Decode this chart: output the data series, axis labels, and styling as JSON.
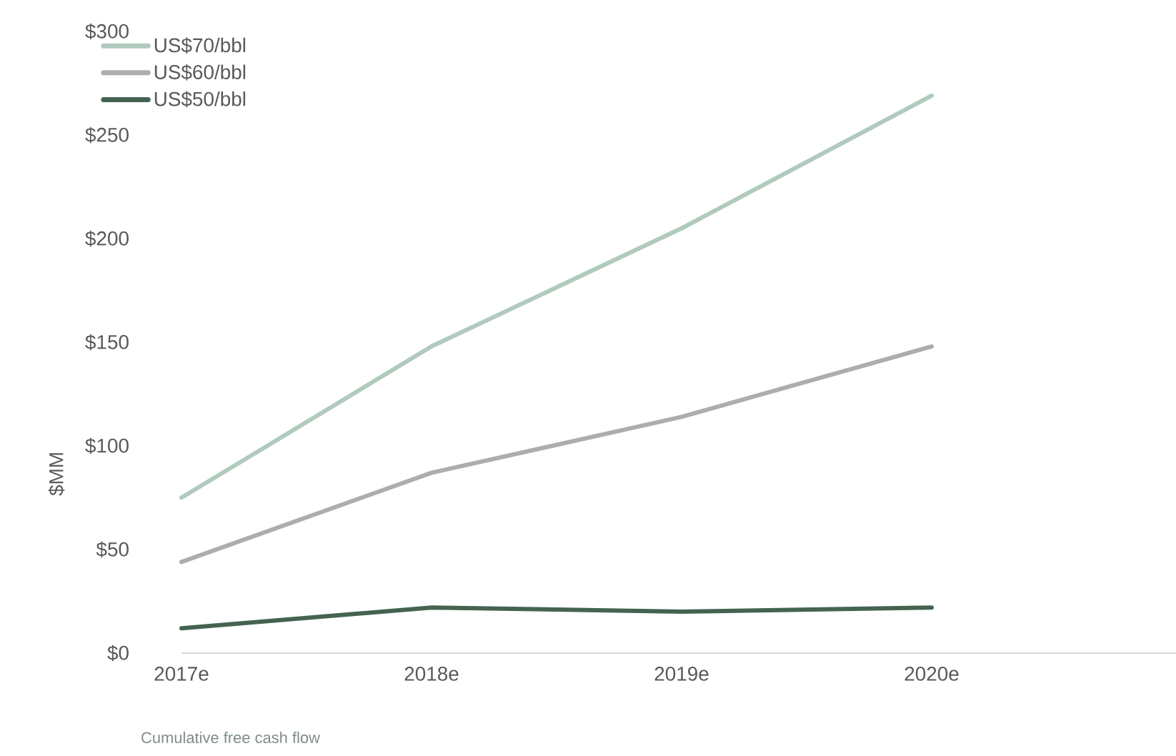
{
  "chart_data": {
    "type": "line",
    "categories": [
      "2017e",
      "2018e",
      "2019e",
      "2020e"
    ],
    "series": [
      {
        "name": "US$70/bbl",
        "color": "#b0cbbd",
        "values": [
          75,
          148,
          205,
          269
        ]
      },
      {
        "name": "US$60/bbl",
        "color": "#adadad",
        "values": [
          44,
          87,
          114,
          148
        ]
      },
      {
        "name": "US$50/bbl",
        "color": "#446351",
        "values": [
          12,
          22,
          20,
          22
        ]
      }
    ],
    "ylabel": "$MM",
    "ylim": [
      0,
      300
    ],
    "yticks": [
      {
        "value": 0,
        "label": "$0"
      },
      {
        "value": 50,
        "label": "$50"
      },
      {
        "value": 100,
        "label": "$100"
      },
      {
        "value": 150,
        "label": "$150"
      },
      {
        "value": 200,
        "label": "$200"
      },
      {
        "value": 250,
        "label": "$250"
      },
      {
        "value": 300,
        "label": "$300"
      }
    ],
    "annotations": [
      "Cumulative free cash flow"
    ],
    "legend": "top left",
    "grid": false,
    "marker": "none",
    "line_style": "solid"
  }
}
